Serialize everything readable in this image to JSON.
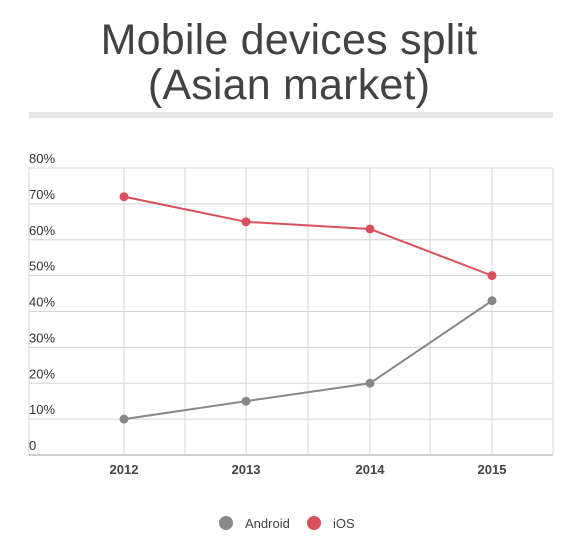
{
  "chart_data": {
    "type": "line",
    "title": "Mobile devices split",
    "subtitle": "(Asian market)",
    "x": [
      "2012",
      "2013",
      "2014",
      "2015"
    ],
    "ylim": [
      0,
      80
    ],
    "yticks": [
      "0",
      "10%",
      "20%",
      "30%",
      "40%",
      "50%",
      "60%",
      "70%",
      "80%"
    ],
    "grid": true,
    "legend_position": "bottom",
    "series": [
      {
        "name": "Android",
        "color": "#888888",
        "values": [
          10,
          15,
          20,
          43
        ]
      },
      {
        "name": "iOS",
        "color": "#db4f5a",
        "values": [
          72,
          65,
          63,
          50
        ]
      }
    ]
  }
}
